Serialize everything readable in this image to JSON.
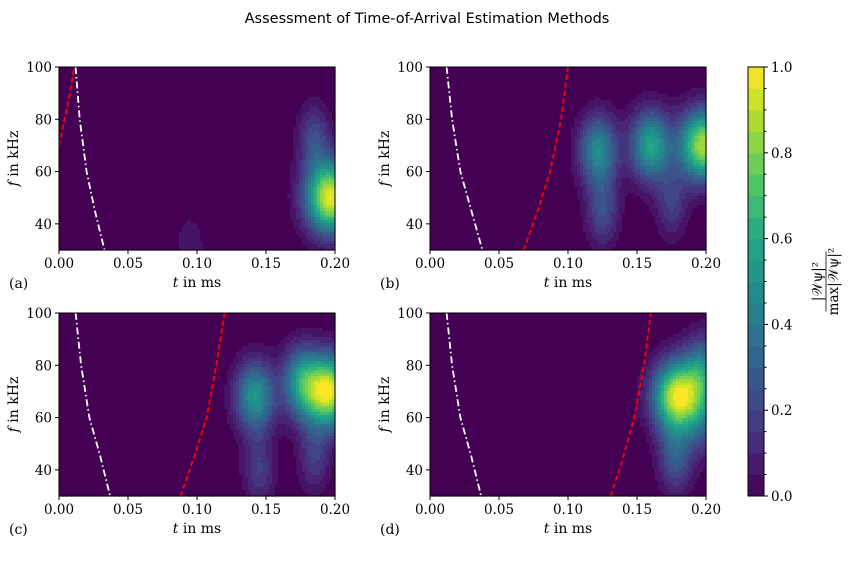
{
  "title": "Assessment of Time-of-Arrival Estimation Methods",
  "colorbar": {
    "ticks": [
      "0.0",
      "0.2",
      "0.4",
      "0.6",
      "0.8",
      "1.0"
    ],
    "label": "|𝒲ψ|² / max|𝒲ψ|²",
    "label_num": "|𝒲ψ|²",
    "label_den": "max|𝒲ψ|²",
    "range": [
      0,
      1
    ],
    "levels": 20
  },
  "colormap": [
    "#440154",
    "#482475",
    "#414487",
    "#355f8d",
    "#2a788e",
    "#21918c",
    "#22a884",
    "#44bf70",
    "#7ad151",
    "#bddf26",
    "#fde725"
  ],
  "chart_data": [
    {
      "panel_label": "(a)",
      "type": "heatmap",
      "xlabel_var": "t",
      "xlabel_unit": " in ms",
      "ylabel_var": "f",
      "ylabel_unit": " in kHz",
      "xticks": [
        "0.00",
        "0.05",
        "0.10",
        "0.15",
        "0.20"
      ],
      "yticks": [
        "40",
        "60",
        "80",
        "100"
      ],
      "xlim": [
        0.0,
        0.2
      ],
      "ylim": [
        30,
        100
      ],
      "blobs": [
        {
          "t": 0.197,
          "f": 50,
          "amp": 1.0
        },
        {
          "t": 0.185,
          "f": 72,
          "amp": 0.25
        },
        {
          "t": 0.095,
          "f": 30,
          "amp": 0.1
        }
      ],
      "red_dashed_curve": {
        "t": [
          0.0,
          0.004,
          0.008,
          0.011
        ],
        "f": [
          70,
          80,
          90,
          100
        ]
      },
      "white_dashdot_curve": {
        "t": [
          0.012,
          0.015,
          0.02,
          0.026,
          0.033
        ],
        "f": [
          100,
          80,
          60,
          45,
          30
        ]
      }
    },
    {
      "panel_label": "(b)",
      "type": "heatmap",
      "xlabel_var": "t",
      "xlabel_unit": " in ms",
      "ylabel_var": "f",
      "ylabel_unit": " in kHz",
      "xticks": [
        "0.00",
        "0.05",
        "0.10",
        "0.15",
        "0.20"
      ],
      "yticks": [
        "40",
        "60",
        "80",
        "100"
      ],
      "xlim": [
        0.0,
        0.2
      ],
      "ylim": [
        30,
        100
      ],
      "blobs": [
        {
          "t": 0.198,
          "f": 70,
          "amp": 0.9
        },
        {
          "t": 0.16,
          "f": 70,
          "amp": 0.6
        },
        {
          "t": 0.122,
          "f": 68,
          "amp": 0.5
        },
        {
          "t": 0.125,
          "f": 45,
          "amp": 0.25
        },
        {
          "t": 0.175,
          "f": 48,
          "amp": 0.2
        }
      ],
      "red_dashed_curve": {
        "t": [
          0.068,
          0.078,
          0.087,
          0.095,
          0.1
        ],
        "f": [
          30,
          45,
          60,
          80,
          100
        ]
      },
      "white_dashdot_curve": {
        "t": [
          0.012,
          0.016,
          0.022,
          0.03,
          0.038
        ],
        "f": [
          100,
          80,
          60,
          45,
          30
        ]
      }
    },
    {
      "panel_label": "(c)",
      "type": "heatmap",
      "xlabel_var": "t",
      "xlabel_unit": " in ms",
      "ylabel_var": "f",
      "ylabel_unit": " in kHz",
      "xticks": [
        "0.00",
        "0.05",
        "0.10",
        "0.15",
        "0.20"
      ],
      "yticks": [
        "40",
        "60",
        "80",
        "100"
      ],
      "xlim": [
        0.0,
        0.2
      ],
      "ylim": [
        30,
        100
      ],
      "blobs": [
        {
          "t": 0.195,
          "f": 70,
          "amp": 1.0
        },
        {
          "t": 0.175,
          "f": 74,
          "amp": 0.45
        },
        {
          "t": 0.142,
          "f": 68,
          "amp": 0.55
        },
        {
          "t": 0.145,
          "f": 40,
          "amp": 0.2
        },
        {
          "t": 0.185,
          "f": 45,
          "amp": 0.2
        }
      ],
      "red_dashed_curve": {
        "t": [
          0.088,
          0.098,
          0.107,
          0.114,
          0.12
        ],
        "f": [
          30,
          45,
          60,
          80,
          100
        ]
      },
      "white_dashdot_curve": {
        "t": [
          0.012,
          0.016,
          0.022,
          0.03,
          0.037
        ],
        "f": [
          100,
          80,
          60,
          45,
          30
        ]
      }
    },
    {
      "panel_label": "(d)",
      "type": "heatmap",
      "xlabel_var": "t",
      "xlabel_unit": " in ms",
      "ylabel_var": "f",
      "ylabel_unit": " in kHz",
      "xticks": [
        "0.00",
        "0.05",
        "0.10",
        "0.15",
        "0.20"
      ],
      "yticks": [
        "40",
        "60",
        "80",
        "100"
      ],
      "xlim": [
        0.0,
        0.2
      ],
      "ylim": [
        30,
        100
      ],
      "blobs": [
        {
          "t": 0.18,
          "f": 68,
          "amp": 1.0
        },
        {
          "t": 0.198,
          "f": 78,
          "amp": 0.4
        },
        {
          "t": 0.178,
          "f": 45,
          "amp": 0.3
        },
        {
          "t": 0.198,
          "f": 58,
          "amp": 0.2
        }
      ],
      "red_dashed_curve": {
        "t": [
          0.131,
          0.14,
          0.148,
          0.155,
          0.16
        ],
        "f": [
          30,
          45,
          60,
          80,
          100
        ]
      },
      "white_dashdot_curve": {
        "t": [
          0.012,
          0.016,
          0.022,
          0.03,
          0.037
        ],
        "f": [
          100,
          80,
          60,
          45,
          30
        ]
      }
    }
  ]
}
